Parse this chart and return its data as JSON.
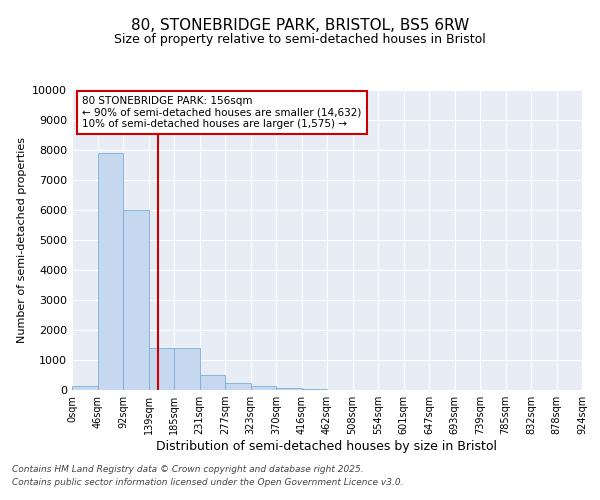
{
  "title": "80, STONEBRIDGE PARK, BRISTOL, BS5 6RW",
  "subtitle": "Size of property relative to semi-detached houses in Bristol",
  "xlabel": "Distribution of semi-detached houses by size in Bristol",
  "ylabel": "Number of semi-detached properties",
  "bin_labels": [
    "0sqm",
    "46sqm",
    "92sqm",
    "139sqm",
    "185sqm",
    "231sqm",
    "277sqm",
    "323sqm",
    "370sqm",
    "416sqm",
    "462sqm",
    "508sqm",
    "554sqm",
    "601sqm",
    "647sqm",
    "693sqm",
    "739sqm",
    "785sqm",
    "832sqm",
    "878sqm",
    "924sqm"
  ],
  "values": [
    150,
    7900,
    6000,
    1400,
    1400,
    500,
    250,
    150,
    75,
    30,
    10,
    5,
    3,
    2,
    1,
    1,
    0,
    0,
    0,
    0
  ],
  "bar_color": "#c5d8f0",
  "bar_edge_color": "#7aafd4",
  "red_line_index": 3.37,
  "red_line_color": "#cc0000",
  "annotation_text": "80 STONEBRIDGE PARK: 156sqm\n← 90% of semi-detached houses are smaller (14,632)\n10% of semi-detached houses are larger (1,575) →",
  "ylim": [
    0,
    10000
  ],
  "yticks": [
    0,
    1000,
    2000,
    3000,
    4000,
    5000,
    6000,
    7000,
    8000,
    9000,
    10000
  ],
  "plot_bg_color": "#e8edf5",
  "footer_line1": "Contains HM Land Registry data © Crown copyright and database right 2025.",
  "footer_line2": "Contains public sector information licensed under the Open Government Licence v3.0."
}
